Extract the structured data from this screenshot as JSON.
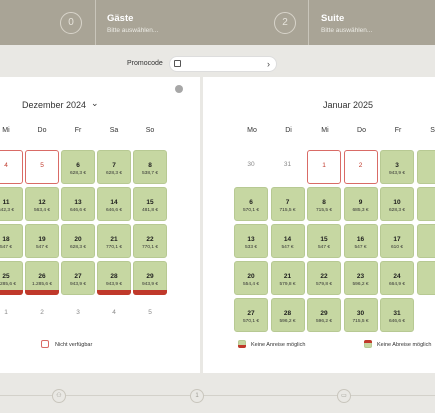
{
  "steps": [
    {
      "num": "0",
      "title": "",
      "sub": ""
    },
    {
      "title": "Gäste",
      "sub": "Bitte auswählen..."
    },
    {
      "num": "2",
      "title": "Suite",
      "sub": "Bitte auswählen..."
    }
  ],
  "promo": {
    "label": "Promocode",
    "chevron": "›"
  },
  "months": {
    "left": {
      "title": "Dezember 2024",
      "chevron": "⌄"
    },
    "right": {
      "title": "Januar 2025"
    }
  },
  "weekdays_left": [
    "Mi",
    "Do",
    "Fr",
    "Sa",
    "So"
  ],
  "weekdays_right": [
    "Mo",
    "Di",
    "Mi",
    "Do",
    "Fr",
    "Sa"
  ],
  "dec_cells": [
    {
      "d": "4",
      "p": "",
      "s": "unavail"
    },
    {
      "d": "5",
      "p": "",
      "s": "unavail"
    },
    {
      "d": "6",
      "p": "628,3 €",
      "s": "green"
    },
    {
      "d": "7",
      "p": "628,3 €",
      "s": "green"
    },
    {
      "d": "8",
      "p": "538,7 €",
      "s": "green"
    },
    {
      "d": "11",
      "p": "542,3 €",
      "s": "green"
    },
    {
      "d": "12",
      "p": "563,4 €",
      "s": "green"
    },
    {
      "d": "13",
      "p": "646,6 €",
      "s": "green"
    },
    {
      "d": "14",
      "p": "646,6 €",
      "s": "green"
    },
    {
      "d": "15",
      "p": "481,8 €",
      "s": "green"
    },
    {
      "d": "18",
      "p": "547 €",
      "s": "green"
    },
    {
      "d": "19",
      "p": "547 €",
      "s": "green"
    },
    {
      "d": "20",
      "p": "628,3 €",
      "s": "green"
    },
    {
      "d": "21",
      "p": "770,1 €",
      "s": "green"
    },
    {
      "d": "22",
      "p": "770,1 €",
      "s": "green"
    },
    {
      "d": "25",
      "p": "1.285,6 €",
      "s": "green-nodep"
    },
    {
      "d": "26",
      "p": "1.285,6 €",
      "s": "green-nodep"
    },
    {
      "d": "27",
      "p": "943,9 €",
      "s": "green"
    },
    {
      "d": "28",
      "p": "943,9 €",
      "s": "green-nodep"
    },
    {
      "d": "29",
      "p": "943,9 €",
      "s": "green-nodep"
    },
    {
      "d": "1",
      "p": "",
      "s": "plain"
    },
    {
      "d": "2",
      "p": "",
      "s": "plain"
    },
    {
      "d": "3",
      "p": "",
      "s": "plain"
    },
    {
      "d": "4",
      "p": "",
      "s": "plain"
    },
    {
      "d": "5",
      "p": "",
      "s": "plain"
    }
  ],
  "jan_cells": [
    {
      "d": "30",
      "p": "",
      "s": "plain"
    },
    {
      "d": "31",
      "p": "",
      "s": "plain"
    },
    {
      "d": "1",
      "p": "",
      "s": "unavail"
    },
    {
      "d": "2",
      "p": "",
      "s": "unavail"
    },
    {
      "d": "3",
      "p": "943,9 €",
      "s": "green"
    },
    {
      "d": "",
      "p": "",
      "s": "green"
    },
    {
      "d": "6",
      "p": "570,1 €",
      "s": "green"
    },
    {
      "d": "7",
      "p": "715,5 €",
      "s": "green"
    },
    {
      "d": "8",
      "p": "715,5 €",
      "s": "green"
    },
    {
      "d": "9",
      "p": "685,3 €",
      "s": "green"
    },
    {
      "d": "10",
      "p": "628,3 €",
      "s": "green"
    },
    {
      "d": "",
      "p": "",
      "s": "green"
    },
    {
      "d": "13",
      "p": "533 €",
      "s": "green"
    },
    {
      "d": "14",
      "p": "547 €",
      "s": "green"
    },
    {
      "d": "15",
      "p": "547 €",
      "s": "green"
    },
    {
      "d": "16",
      "p": "547 €",
      "s": "green"
    },
    {
      "d": "17",
      "p": "610 €",
      "s": "green"
    },
    {
      "d": "",
      "p": "",
      "s": "green"
    },
    {
      "d": "20",
      "p": "554,4 €",
      "s": "green"
    },
    {
      "d": "21",
      "p": "579,8 €",
      "s": "green"
    },
    {
      "d": "22",
      "p": "579,8 €",
      "s": "green"
    },
    {
      "d": "23",
      "p": "596,2 €",
      "s": "green"
    },
    {
      "d": "24",
      "p": "664,9 €",
      "s": "green"
    },
    {
      "d": "",
      "p": "",
      "s": "green"
    },
    {
      "d": "27",
      "p": "570,1 €",
      "s": "green"
    },
    {
      "d": "28",
      "p": "596,2 €",
      "s": "green"
    },
    {
      "d": "29",
      "p": "596,2 €",
      "s": "green"
    },
    {
      "d": "30",
      "p": "715,5 €",
      "s": "green"
    },
    {
      "d": "31",
      "p": "646,6 €",
      "s": "green"
    }
  ],
  "legend": {
    "unavail": "Nicht verfügbar",
    "no_arrival": "Keine Anreise möglich",
    "no_departure": "Keine Abreise möglich"
  },
  "bottom": {
    "step2": "1"
  },
  "colors": {
    "available": "#c6d7a2",
    "restricted": "#c0392b",
    "header": "#a9a496"
  }
}
